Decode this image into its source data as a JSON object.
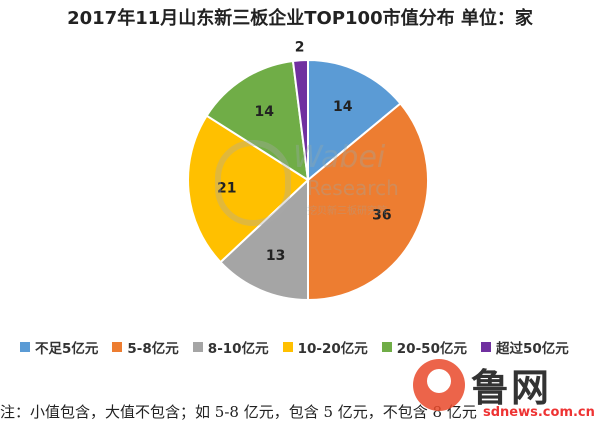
{
  "chart_data": {
    "type": "pie",
    "title": "2017年11月山东新三板企业TOP100市值分布  单位：家",
    "categories": [
      "不足5亿元",
      "5-8亿元",
      "8-10亿元",
      "10-20亿元",
      "20-50亿元",
      "超过50亿元"
    ],
    "values": [
      14,
      36,
      13,
      21,
      14,
      2
    ],
    "colors": [
      "#5b9bd5",
      "#ed7d31",
      "#a5a5a5",
      "#ffc000",
      "#70ad47",
      "#7030a0"
    ],
    "legend_position": "bottom"
  },
  "note": "注：小值包含，大值不包含；如 5-8 亿元，包含 5 亿元，不包含 8 亿元",
  "watermark": {
    "brand": "Wabei",
    "sub": "Research",
    "cn": "挖贝新三板研究院",
    "logo_text": "鲁网",
    "logo_url": "sdnews.com.cn"
  }
}
